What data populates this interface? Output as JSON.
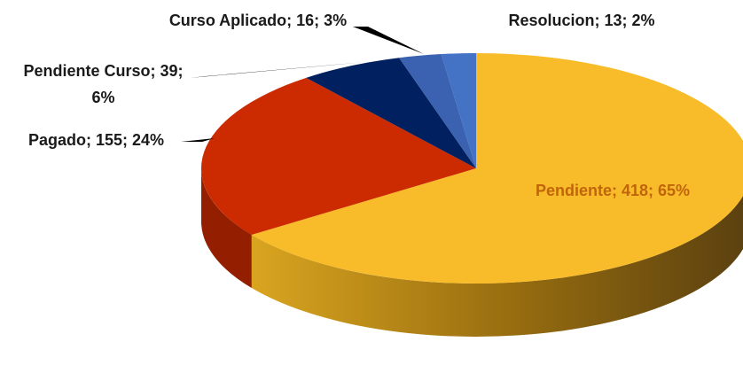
{
  "chart_data": {
    "type": "pie3d",
    "categories": [
      "Pendiente",
      "Pagado",
      "Pendiente Curso",
      "Curso Aplicado",
      "Resolucion"
    ],
    "values": [
      418,
      155,
      39,
      16,
      13
    ],
    "value_labels": [
      "Pendiente; 418; 65%",
      "Pagado; 155; 24%",
      "Pendiente Curso; 39; 6%",
      "Curso Aplicado; 16; 3%",
      "Resolucion; 13; 2%"
    ],
    "colors": [
      "#f8bc2a",
      "#cc2a00",
      "#002060",
      "#3a62b0",
      "#4472c4"
    ]
  }
}
